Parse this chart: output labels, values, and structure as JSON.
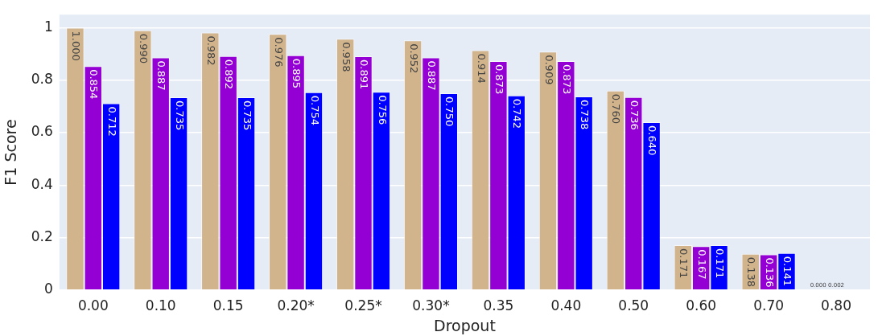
{
  "chart_data": {
    "type": "bar",
    "xlabel": "Dropout",
    "ylabel": "F1 Score",
    "categories": [
      "0.00",
      "0.10",
      "0.15",
      "0.20*",
      "0.25*",
      "0.30*",
      "0.35",
      "0.40",
      "0.50",
      "0.60",
      "0.70",
      "0.80"
    ],
    "series": [
      {
        "color": "#d2b48c",
        "values": [
          1.0,
          0.99,
          0.982,
          0.976,
          0.958,
          0.952,
          0.914,
          0.909,
          0.76,
          0.171,
          0.138,
          0.0
        ],
        "value_labels": [
          "1.000",
          "0.990",
          "0.982",
          "0.976",
          "0.958",
          "0.952",
          "0.914",
          "0.909",
          "0.760",
          "0.171",
          "0.138",
          "0.000"
        ]
      },
      {
        "color": "#9400d3",
        "values": [
          0.854,
          0.887,
          0.892,
          0.895,
          0.891,
          0.887,
          0.873,
          0.873,
          0.736,
          0.167,
          0.136,
          0.002
        ],
        "value_labels": [
          "0.854",
          "0.887",
          "0.892",
          "0.895",
          "0.891",
          "0.887",
          "0.873",
          "0.873",
          "0.736",
          "0.167",
          "0.136",
          "0.002"
        ]
      },
      {
        "color": "#0000ff",
        "values": [
          0.712,
          0.735,
          0.735,
          0.754,
          0.756,
          0.75,
          0.742,
          0.738,
          0.64,
          0.171,
          0.141,
          null
        ],
        "value_labels": [
          "0.712",
          "0.735",
          "0.735",
          "0.754",
          "0.756",
          "0.750",
          "0.742",
          "0.738",
          "0.640",
          "0.171",
          "0.141",
          null
        ]
      }
    ],
    "ylim": [
      0,
      1.05
    ],
    "yticks": [
      0,
      0.2,
      0.4,
      0.6,
      0.8,
      1
    ],
    "grid": "y",
    "legend": false
  }
}
